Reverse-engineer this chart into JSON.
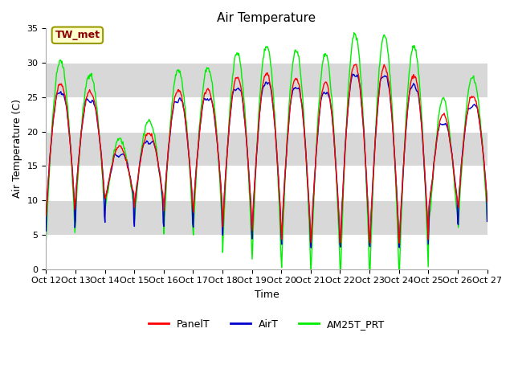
{
  "title": "Air Temperature",
  "ylabel": "Air Temperature (C)",
  "xlabel": "Time",
  "ylim": [
    0,
    35
  ],
  "yticks": [
    0,
    5,
    10,
    15,
    20,
    25,
    30,
    35
  ],
  "x_tick_labels": [
    "Oct 12",
    "Oct 13",
    "Oct 14",
    "Oct 15",
    "Oct 16",
    "Oct 17",
    "Oct 18",
    "Oct 19",
    "Oct 20",
    "Oct 21",
    "Oct 22",
    "Oct 23",
    "Oct 24",
    "Oct 25",
    "Oct 26",
    "Oct 27"
  ],
  "annotation_text": "TW_met",
  "annotation_color": "#8b0000",
  "annotation_bg": "#ffffcc",
  "annotation_border": "#999900",
  "legend_entries": [
    "PanelT",
    "AirT",
    "AM25T_PRT"
  ],
  "line_colors": [
    "#ff0000",
    "#0000cc",
    "#00ee00"
  ],
  "bg_color": "#ffffff",
  "plot_bg": "#e8e8e8",
  "band_color_light": "#ffffff",
  "band_color_dark": "#d8d8d8",
  "title_fontsize": 11,
  "label_fontsize": 9,
  "tick_fontsize": 8,
  "legend_fontsize": 9,
  "line_width": 1.0
}
